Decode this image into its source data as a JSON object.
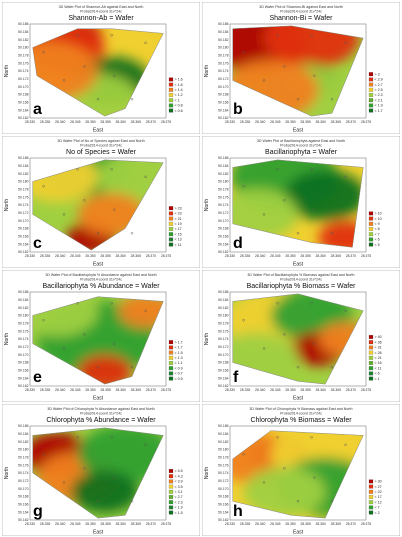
{
  "chart_data": [
    {
      "type": "heatmap",
      "panel_letter": "a",
      "title_small": "3D Wafer Plot of Shannon-Ab against East and North",
      "subtitle_small": "Proba2014-coord 31v*24c",
      "title": "Shannon-Ab = Wafer",
      "xlabel": "East",
      "ylabel": "North",
      "x_ticks": [
        "28.330",
        "28.335",
        "28.340",
        "28.345",
        "28.350",
        "28.355",
        "28.360",
        "28.365",
        "28.370",
        "28.375"
      ],
      "y_ticks": [
        "50.186",
        "50.184",
        "50.182",
        "50.180",
        "50.178",
        "50.176",
        "50.174",
        "50.172",
        "50.170",
        "50.168",
        "50.166",
        "50.164",
        "50.162"
      ],
      "legend": [
        {
          "label": "> 1.6",
          "color": "#b00000"
        },
        {
          "label": "< 1.6",
          "color": "#e03010"
        },
        {
          "label": "< 1.4",
          "color": "#f08020"
        },
        {
          "label": "< 1.2",
          "color": "#f0d030"
        },
        {
          "label": "< 1",
          "color": "#a0d040"
        },
        {
          "label": "< 0.8",
          "color": "#30a030"
        },
        {
          "label": "< 0.6",
          "color": "#107020"
        }
      ],
      "legend_placement": "right"
    },
    {
      "type": "heatmap",
      "panel_letter": "b",
      "title_small": "3D Wafer Plot of Shannon-Bi against East and North",
      "subtitle_small": "Proba2014-coord 31v*24c",
      "title": "Shannon-Bi = Wafer",
      "xlabel": "East",
      "ylabel": "North",
      "x_ticks": [
        "28.330",
        "28.335",
        "28.340",
        "28.345",
        "28.350",
        "28.355",
        "28.360",
        "28.365",
        "28.370",
        "28.375"
      ],
      "y_ticks": [
        "50.186",
        "50.184",
        "50.182",
        "50.180",
        "50.178",
        "50.176",
        "50.174",
        "50.172",
        "50.170",
        "50.168",
        "50.166",
        "50.164",
        "50.162"
      ],
      "legend": [
        {
          "label": "> 3",
          "color": "#b00000"
        },
        {
          "label": "< 2.9",
          "color": "#e03010"
        },
        {
          "label": "< 2.7",
          "color": "#f08020"
        },
        {
          "label": "< 2.5",
          "color": "#f0d030"
        },
        {
          "label": "< 2.3",
          "color": "#a0d040"
        },
        {
          "label": "< 2.1",
          "color": "#60b030"
        },
        {
          "label": "< 1.9",
          "color": "#30a030"
        },
        {
          "label": "< 1.7",
          "color": "#107020"
        }
      ],
      "legend_placement": "right"
    },
    {
      "type": "heatmap",
      "panel_letter": "c",
      "title_small": "3D Wafer Plot of No of Species against East and North",
      "subtitle_small": "Proba2014-coord 31v*24c",
      "title": "No of Species = Wafer",
      "xlabel": "East",
      "ylabel": "North",
      "x_ticks": [
        "28.330",
        "28.335",
        "28.340",
        "28.345",
        "28.350",
        "28.355",
        "28.360",
        "28.365",
        "28.370",
        "28.375"
      ],
      "y_ticks": [
        "50.186",
        "50.184",
        "50.182",
        "50.180",
        "50.178",
        "50.176",
        "50.174",
        "50.172",
        "50.170",
        "50.168",
        "50.166",
        "50.164",
        "50.162"
      ],
      "legend": [
        {
          "label": "> 23",
          "color": "#b00000"
        },
        {
          "label": "< 23",
          "color": "#e03010"
        },
        {
          "label": "< 21",
          "color": "#f08020"
        },
        {
          "label": "< 19",
          "color": "#f0d030"
        },
        {
          "label": "< 17",
          "color": "#a0d040"
        },
        {
          "label": "< 15",
          "color": "#30a030"
        },
        {
          "label": "< 13",
          "color": "#208030"
        },
        {
          "label": "< 11",
          "color": "#107020"
        }
      ],
      "legend_placement": "right"
    },
    {
      "type": "heatmap",
      "panel_letter": "d",
      "title_small": "3D Wafer Plot of Bacillariophyta against East and North",
      "subtitle_small": "Proba2014-coord 31v*24c",
      "title": "Bacillariophyta = Wafer",
      "xlabel": "East",
      "ylabel": "North",
      "x_ticks": [
        "28.330",
        "28.335",
        "28.340",
        "28.345",
        "28.350",
        "28.355",
        "28.360",
        "28.365",
        "28.370",
        "28.375"
      ],
      "y_ticks": [
        "50.186",
        "50.184",
        "50.182",
        "50.180",
        "50.178",
        "50.176",
        "50.174",
        "50.172",
        "50.170",
        "50.168",
        "50.166",
        "50.164",
        "50.162"
      ],
      "legend": [
        {
          "label": "> 10",
          "color": "#b00000"
        },
        {
          "label": "< 10",
          "color": "#e03010"
        },
        {
          "label": "< 9",
          "color": "#f08020"
        },
        {
          "label": "< 8",
          "color": "#f0d030"
        },
        {
          "label": "< 7",
          "color": "#a0d040"
        },
        {
          "label": "< 6",
          "color": "#30a030"
        },
        {
          "label": "< 5",
          "color": "#107020"
        }
      ],
      "legend_placement": "right"
    },
    {
      "type": "heatmap",
      "panel_letter": "e",
      "title_small": "3D Wafer Plot of Bacillariophyta % Abundance against East and North",
      "subtitle_small": "Proba2014-coord 31v*24c",
      "title": "Bacillariophyta % Abundance = Wafer",
      "xlabel": "East",
      "ylabel": "North",
      "x_ticks": [
        "28.330",
        "28.335",
        "28.340",
        "28.345",
        "28.350",
        "28.355",
        "28.360",
        "28.365",
        "28.370",
        "28.375"
      ],
      "y_ticks": [
        "50.186",
        "50.184",
        "50.182",
        "50.180",
        "50.178",
        "50.176",
        "50.174",
        "50.172",
        "50.170",
        "50.168",
        "50.166",
        "50.164",
        "50.162"
      ],
      "legend": [
        {
          "label": "> 1.7",
          "color": "#b00000"
        },
        {
          "label": "< 1.7",
          "color": "#e03010"
        },
        {
          "label": "< 1.5",
          "color": "#f08020"
        },
        {
          "label": "< 1.3",
          "color": "#f0d030"
        },
        {
          "label": "< 1.1",
          "color": "#a0d040"
        },
        {
          "label": "< 0.9",
          "color": "#30a030"
        },
        {
          "label": "< 0.7",
          "color": "#208030"
        },
        {
          "label": "< 0.5",
          "color": "#107020"
        }
      ],
      "legend_placement": "right"
    },
    {
      "type": "heatmap",
      "panel_letter": "f",
      "title_small": "3D Wafer Plot of Bacillariophyta % Biomass against East and North",
      "subtitle_small": "Proba2014-coord 31v*24c",
      "title": "Bacillariophyta % Biomass = Wafer",
      "xlabel": "East",
      "ylabel": "North",
      "x_ticks": [
        "28.330",
        "28.335",
        "28.340",
        "28.345",
        "28.350",
        "28.355",
        "28.360",
        "28.365",
        "28.370",
        "28.375"
      ],
      "y_ticks": [
        "50.186",
        "50.184",
        "50.182",
        "50.180",
        "50.178",
        "50.176",
        "50.174",
        "50.172",
        "50.170",
        "50.168",
        "50.166",
        "50.164",
        "50.162"
      ],
      "legend": [
        {
          "label": "> 40",
          "color": "#b00000"
        },
        {
          "label": "< 36",
          "color": "#e03010"
        },
        {
          "label": "< 31",
          "color": "#f08020"
        },
        {
          "label": "< 26",
          "color": "#f0d030"
        },
        {
          "label": "< 21",
          "color": "#a0d040"
        },
        {
          "label": "< 16",
          "color": "#60b030"
        },
        {
          "label": "< 11",
          "color": "#30a030"
        },
        {
          "label": "< 6",
          "color": "#208030"
        },
        {
          "label": "< 1",
          "color": "#107020"
        }
      ],
      "legend_placement": "right"
    },
    {
      "type": "heatmap",
      "panel_letter": "g",
      "title_small": "3D Wafer Plot of Chlorophyta % Abundance against East and North",
      "subtitle_small": "Proba2014-coord 31v*24c",
      "title": "Chlorophyta % Abundance = Wafer",
      "xlabel": "East",
      "ylabel": "North",
      "x_ticks": [
        "28.330",
        "28.335",
        "28.340",
        "28.345",
        "28.350",
        "28.355",
        "28.360",
        "28.365",
        "28.370",
        "28.375"
      ],
      "y_ticks": [
        "50.186",
        "50.184",
        "50.182",
        "50.180",
        "50.178",
        "50.176",
        "50.174",
        "50.172",
        "50.170",
        "50.168",
        "50.166",
        "50.164",
        "50.162"
      ],
      "legend": [
        {
          "label": "> 4.5",
          "color": "#b00000"
        },
        {
          "label": "< 4.3",
          "color": "#e03010"
        },
        {
          "label": "< 3.9",
          "color": "#f08020"
        },
        {
          "label": "< 3.5",
          "color": "#f0d030"
        },
        {
          "label": "< 3.1",
          "color": "#a0d040"
        },
        {
          "label": "< 2.7",
          "color": "#60b030"
        },
        {
          "label": "< 2.3",
          "color": "#30a030"
        },
        {
          "label": "< 1.9",
          "color": "#208030"
        },
        {
          "label": "< 1.5",
          "color": "#107020"
        }
      ],
      "legend_placement": "right"
    },
    {
      "type": "heatmap",
      "panel_letter": "h",
      "title_small": "3D Wafer Plot of Chlorophyta % Biomass against East and North",
      "subtitle_small": "Proba2014-coord 31v*24c",
      "title": "Chlorophyta % Biomass = Wafer",
      "xlabel": "East",
      "ylabel": "North",
      "x_ticks": [
        "28.330",
        "28.335",
        "28.340",
        "28.345",
        "28.350",
        "28.355",
        "28.360",
        "28.365",
        "28.370",
        "28.375"
      ],
      "y_ticks": [
        "50.186",
        "50.184",
        "50.182",
        "50.180",
        "50.178",
        "50.176",
        "50.174",
        "50.172",
        "50.170",
        "50.168",
        "50.166",
        "50.164",
        "50.162"
      ],
      "legend": [
        {
          "label": "> 30",
          "color": "#b00000"
        },
        {
          "label": "< 27",
          "color": "#e03010"
        },
        {
          "label": "< 22",
          "color": "#f08020"
        },
        {
          "label": "< 17",
          "color": "#f0d030"
        },
        {
          "label": "< 12",
          "color": "#a0d040"
        },
        {
          "label": "< 7",
          "color": "#30a030"
        },
        {
          "label": "< 2",
          "color": "#107020"
        }
      ],
      "legend_placement": "right"
    }
  ]
}
